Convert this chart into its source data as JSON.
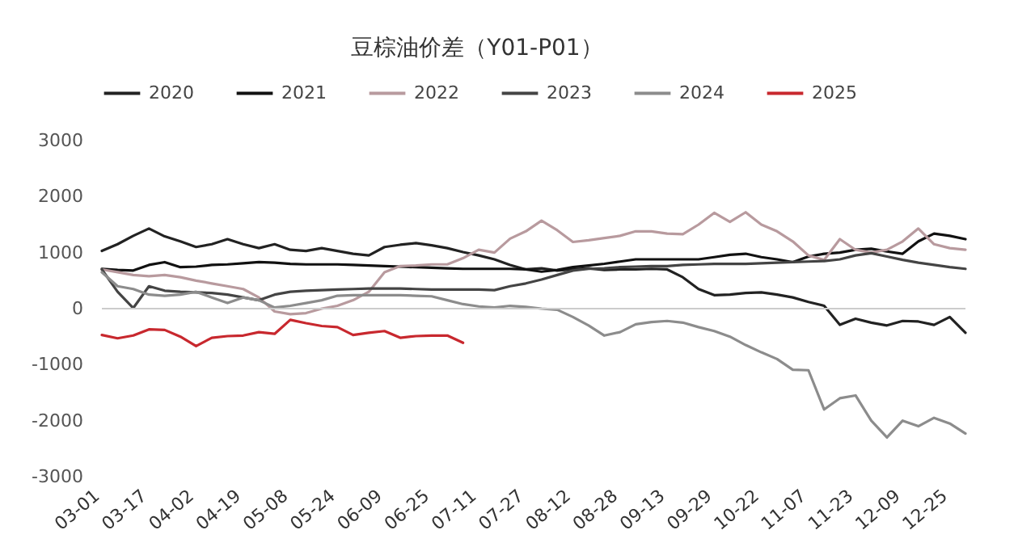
{
  "chart_data": {
    "type": "line",
    "title": "豆棕油价差（Y01-P01）",
    "categories": [
      "03-01",
      null,
      null,
      "03-17",
      null,
      null,
      "04-02",
      null,
      null,
      "04-19",
      null,
      null,
      "05-08",
      null,
      null,
      "05-24",
      null,
      null,
      "06-09",
      null,
      null,
      "06-25",
      null,
      null,
      "07-11",
      null,
      null,
      "07-27",
      null,
      null,
      "08-12",
      null,
      null,
      "08-28",
      null,
      null,
      "09-13",
      null,
      null,
      "09-29",
      null,
      null,
      "10-22",
      null,
      null,
      "11-07",
      null,
      null,
      "11-23",
      null,
      null,
      "12-09",
      null,
      null,
      "12-25",
      null
    ],
    "series": [
      {
        "name": "2020",
        "color": "#222222",
        "values": [
          1030,
          1150,
          1300,
          1430,
          1290,
          1200,
          1100,
          1150,
          1240,
          1150,
          1080,
          1150,
          1050,
          1030,
          1080,
          1030,
          980,
          950,
          1100,
          1140,
          1170,
          1130,
          1080,
          1010,
          950,
          880,
          780,
          700,
          720,
          680,
          700,
          720,
          690,
          700,
          700,
          710,
          700,
          560,
          350,
          240,
          250,
          280,
          290,
          250,
          200,
          120,
          50,
          -290,
          -180,
          -250,
          -300,
          -220,
          -230,
          -290,
          -150,
          -430
        ]
      },
      {
        "name": "2021",
        "color": "#111111",
        "values": [
          710,
          690,
          680,
          780,
          830,
          740,
          750,
          780,
          790,
          810,
          830,
          820,
          800,
          790,
          790,
          790,
          780,
          770,
          760,
          750,
          740,
          730,
          720,
          710,
          710,
          710,
          710,
          700,
          660,
          690,
          740,
          770,
          800,
          840,
          880,
          880,
          880,
          880,
          880,
          920,
          960,
          980,
          920,
          880,
          830,
          930,
          980,
          1000,
          1050,
          1070,
          1020,
          980,
          1200,
          1340,
          1300,
          1240
        ]
      },
      {
        "name": "2022",
        "color": "#b89a9e",
        "values": [
          700,
          650,
          600,
          580,
          600,
          560,
          500,
          450,
          400,
          350,
          200,
          -50,
          -100,
          -80,
          0,
          50,
          150,
          300,
          650,
          760,
          770,
          790,
          790,
          900,
          1050,
          1000,
          1250,
          1380,
          1570,
          1400,
          1190,
          1220,
          1260,
          1300,
          1380,
          1380,
          1340,
          1330,
          1500,
          1710,
          1550,
          1720,
          1500,
          1380,
          1200,
          950,
          870,
          1240,
          1050,
          1000,
          1050,
          1200,
          1430,
          1150,
          1080,
          1050
        ]
      },
      {
        "name": "2023",
        "color": "#444444",
        "values": [
          700,
          300,
          10,
          400,
          320,
          300,
          290,
          280,
          250,
          200,
          150,
          250,
          300,
          320,
          330,
          340,
          350,
          360,
          360,
          360,
          350,
          340,
          340,
          340,
          340,
          330,
          400,
          450,
          520,
          600,
          680,
          710,
          720,
          740,
          750,
          760,
          760,
          780,
          790,
          800,
          800,
          800,
          810,
          820,
          830,
          840,
          850,
          880,
          950,
          990,
          930,
          870,
          820,
          780,
          740,
          710
        ]
      },
      {
        "name": "2024",
        "color": "#8c8c8c",
        "values": [
          650,
          400,
          350,
          250,
          230,
          250,
          300,
          200,
          100,
          200,
          150,
          20,
          50,
          100,
          150,
          230,
          240,
          240,
          240,
          240,
          230,
          220,
          150,
          80,
          40,
          20,
          50,
          30,
          0,
          -20,
          -150,
          -300,
          -480,
          -420,
          -280,
          -240,
          -220,
          -250,
          -330,
          -400,
          -500,
          -650,
          -780,
          -900,
          -1090,
          -1100,
          -1800,
          -1600,
          -1550,
          -2000,
          -2300,
          -2000,
          -2100,
          -1950,
          -2050,
          -2230
        ]
      },
      {
        "name": "2025",
        "color": "#c8282e",
        "values": [
          -470,
          -530,
          -480,
          -370,
          -380,
          -500,
          -670,
          -520,
          -490,
          -480,
          -420,
          -450,
          -200,
          -260,
          -310,
          -330,
          -470,
          -430,
          -400,
          -520,
          -490,
          -480,
          -480,
          -610,
          null,
          null,
          null,
          null,
          null,
          null,
          null,
          null,
          null,
          null,
          null,
          null,
          null,
          null,
          null,
          null,
          null,
          null,
          null,
          null,
          null,
          null,
          null,
          null,
          null,
          null,
          null,
          null,
          null,
          null,
          null,
          null
        ]
      }
    ],
    "ylim": [
      -3000,
      3000
    ],
    "yticks": [
      {
        "value": -3000,
        "label": "-3000"
      },
      {
        "value": -2000,
        "label": "-2000"
      },
      {
        "value": -1000,
        "label": "-1000"
      },
      0,
      {
        "value": 1000,
        "label": "1000"
      },
      {
        "value": 2000,
        "label": "2000"
      },
      {
        "value": 3000,
        "label": "3000"
      }
    ],
    "ref_lines": [
      {
        "axis": "y",
        "value": 0,
        "color": "#cccccc"
      }
    ],
    "grid": false,
    "legend": "top",
    "marker": "none",
    "line_style": "solid"
  }
}
